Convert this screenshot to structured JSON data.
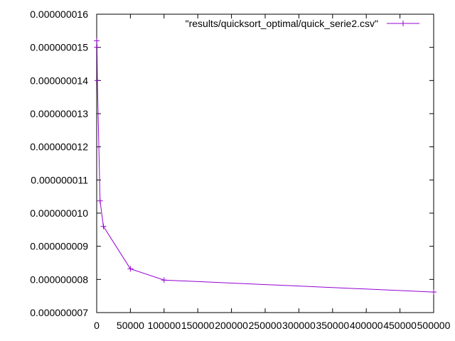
{
  "chart_data": {
    "type": "line",
    "title": "",
    "xlabel": "",
    "ylabel": "",
    "xlim": [
      0,
      500000
    ],
    "ylim": [
      7e-09,
      1.6e-08
    ],
    "grid": false,
    "legend_position": "top-right",
    "x_ticks": [
      "0",
      "50000",
      "100000",
      "150000",
      "200000",
      "250000",
      "300000",
      "350000",
      "400000",
      "450000",
      "500000"
    ],
    "y_ticks": [
      "0.000000007",
      "0.000000008",
      "0.000000009",
      "0.000000010",
      "0.000000011",
      "0.000000012",
      "0.000000013",
      "0.000000014",
      "0.000000015",
      "0.000000016"
    ],
    "series": [
      {
        "name": "\"results/quicksort_optimal/quick_serie2.csv\"",
        "color": "#9400d3",
        "marker": "plus",
        "x": [
          100,
          500,
          1000,
          5000,
          10000,
          50000,
          100000,
          500000
        ],
        "y": [
          1.52e-08,
          1.5e-08,
          1.4e-08,
          1.037e-08,
          9.6e-09,
          8.32e-09,
          7.98e-09,
          7.62e-09
        ]
      }
    ]
  }
}
